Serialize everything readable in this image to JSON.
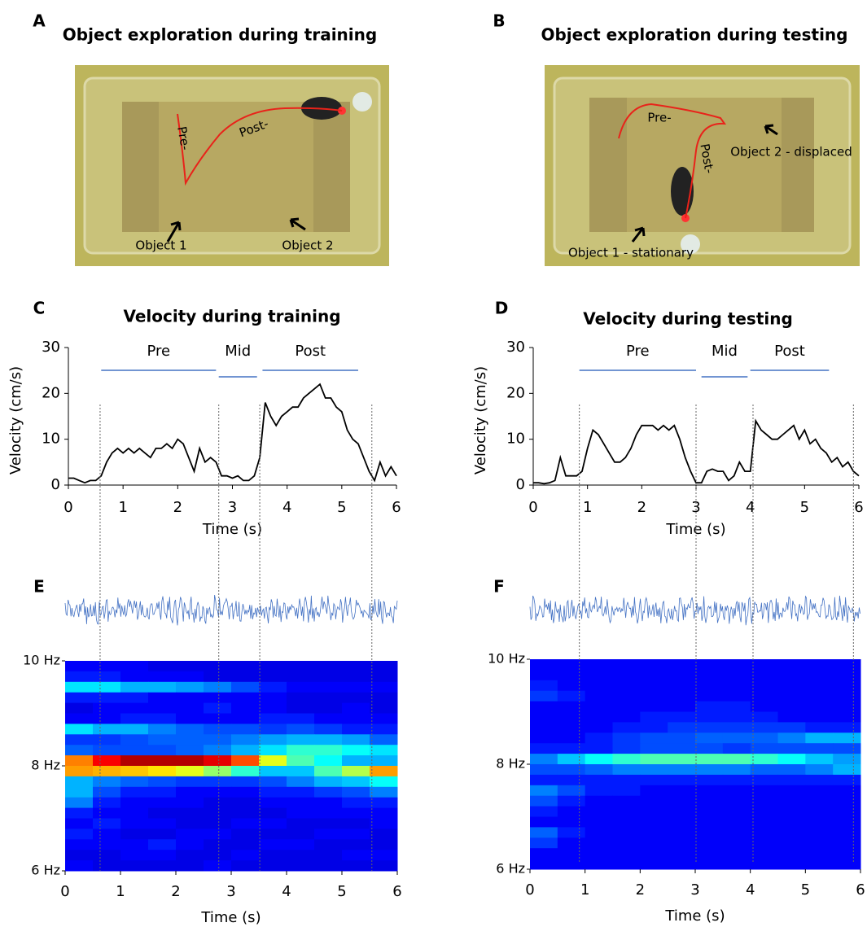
{
  "photos": [
    {
      "panel": "A",
      "title": "Object exploration during training",
      "labels": [
        "Pre-",
        "Post-",
        "Object 1",
        "Object 2"
      ]
    },
    {
      "panel": "B",
      "title": "Object exploration during testing",
      "labels": [
        "Pre-",
        "Post-",
        "Object 2 - displaced",
        "Object 1 - stationary"
      ]
    }
  ],
  "chart_data": [
    {
      "type": "line",
      "panel": "C",
      "title": "Velocity during training",
      "xlabel": "Time (s)",
      "ylabel": "Velocity (cm/s)",
      "color": "#000000",
      "phase_color": "#4472c4",
      "xlim": [
        0,
        6
      ],
      "ylim": [
        0,
        30
      ],
      "xticks": [
        0,
        1,
        2,
        3,
        4,
        5,
        6
      ],
      "yticks": [
        0,
        10,
        20,
        30
      ],
      "x": [
        0,
        0.1,
        0.2,
        0.3,
        0.4,
        0.5,
        0.6,
        0.7,
        0.8,
        0.9,
        1,
        1.1,
        1.2,
        1.3,
        1.4,
        1.5,
        1.6,
        1.7,
        1.8,
        1.9,
        2,
        2.1,
        2.2,
        2.3,
        2.4,
        2.5,
        2.6,
        2.7,
        2.8,
        2.9,
        3,
        3.1,
        3.2,
        3.3,
        3.4,
        3.5,
        3.6,
        3.7,
        3.8,
        3.9,
        4,
        4.1,
        4.2,
        4.3,
        4.4,
        4.5,
        4.6,
        4.7,
        4.8,
        4.9,
        5,
        5.1,
        5.2,
        5.3,
        5.4,
        5.5,
        5.6,
        5.7,
        5.8,
        5.9,
        6
      ],
      "values": [
        1.5,
        1.5,
        1,
        0.5,
        1,
        1,
        2,
        5,
        7,
        8,
        7,
        8,
        7,
        8,
        7,
        6,
        8,
        8,
        9,
        8,
        10,
        9,
        6,
        3,
        8,
        5,
        6,
        5,
        2,
        2,
        1.5,
        2,
        1,
        1,
        2,
        6,
        18,
        15,
        13,
        15,
        16,
        17,
        17,
        19,
        20,
        21,
        22,
        19,
        19,
        17,
        16,
        12,
        10,
        9,
        6,
        3,
        1,
        5,
        2,
        4,
        2
      ],
      "phases": [
        {
          "label": "Pre",
          "start": 0.6,
          "end": 2.7
        },
        {
          "label": "Mid",
          "start": 2.75,
          "end": 3.45
        },
        {
          "label": "Post",
          "start": 3.55,
          "end": 5.3
        }
      ],
      "markers": [
        0.58,
        2.75,
        3.5,
        5.55
      ]
    },
    {
      "type": "line",
      "panel": "D",
      "title": "Velocity during testing",
      "xlabel": "Time (s)",
      "ylabel": "Velocity (cm/s)",
      "color": "#000000",
      "phase_color": "#4472c4",
      "xlim": [
        0,
        6
      ],
      "ylim": [
        0,
        30
      ],
      "xticks": [
        0,
        1,
        2,
        3,
        4,
        5,
        6
      ],
      "yticks": [
        0,
        10,
        20,
        30
      ],
      "x": [
        0,
        0.1,
        0.2,
        0.3,
        0.4,
        0.5,
        0.6,
        0.7,
        0.8,
        0.9,
        1,
        1.1,
        1.2,
        1.3,
        1.4,
        1.5,
        1.6,
        1.7,
        1.8,
        1.9,
        2,
        2.1,
        2.2,
        2.3,
        2.4,
        2.5,
        2.6,
        2.7,
        2.8,
        2.9,
        3,
        3.1,
        3.2,
        3.3,
        3.4,
        3.5,
        3.6,
        3.7,
        3.8,
        3.9,
        4,
        4.1,
        4.2,
        4.3,
        4.4,
        4.5,
        4.6,
        4.7,
        4.8,
        4.9,
        5,
        5.1,
        5.2,
        5.3,
        5.4,
        5.5,
        5.6,
        5.7,
        5.8,
        5.9,
        6
      ],
      "values": [
        0.5,
        0.5,
        0.3,
        0.5,
        1,
        6,
        2,
        2,
        2,
        3,
        8,
        12,
        11,
        9,
        7,
        5,
        5,
        6,
        8,
        11,
        13,
        13,
        13,
        12,
        13,
        12,
        13,
        10,
        6,
        3,
        0.5,
        0.5,
        3,
        3.5,
        3,
        3,
        1,
        2,
        5,
        3,
        3,
        14,
        12,
        11,
        10,
        10,
        11,
        12,
        13,
        10,
        12,
        9,
        10,
        8,
        7,
        5,
        6,
        4,
        5,
        3,
        2
      ],
      "phases": [
        {
          "label": "Pre",
          "start": 0.85,
          "end": 3.0
        },
        {
          "label": "Mid",
          "start": 3.1,
          "end": 3.95
        },
        {
          "label": "Post",
          "start": 4.0,
          "end": 5.45
        }
      ],
      "markers": [
        0.85,
        3.0,
        4.05,
        5.9
      ]
    },
    {
      "type": "heatmap",
      "panel": "E",
      "xlabel": "Time (s)",
      "xlim": [
        0,
        6
      ],
      "xticks": [
        0,
        1,
        2,
        3,
        4,
        5,
        6
      ],
      "ylim": [
        6,
        10
      ],
      "zlim": [
        0,
        1
      ],
      "yticks": [
        {
          "value": 6,
          "label": "6 Hz"
        },
        {
          "value": 8,
          "label": "8 Hz"
        },
        {
          "value": 10,
          "label": "10 Hz"
        }
      ],
      "z": [
        [
          0.12,
          0.12,
          0.12,
          0.1,
          0.1,
          0.1,
          0.1,
          0.1,
          0.1,
          0.1,
          0.1,
          0.1
        ],
        [
          0.15,
          0.15,
          0.12,
          0.12,
          0.12,
          0.1,
          0.1,
          0.1,
          0.1,
          0.1,
          0.1,
          0.1
        ],
        [
          0.35,
          0.35,
          0.3,
          0.3,
          0.28,
          0.25,
          0.2,
          0.15,
          0.12,
          0.12,
          0.12,
          0.12
        ],
        [
          0.15,
          0.15,
          0.15,
          0.12,
          0.12,
          0.12,
          0.12,
          0.12,
          0.1,
          0.1,
          0.1,
          0.1
        ],
        [
          0.1,
          0.12,
          0.12,
          0.12,
          0.12,
          0.15,
          0.12,
          0.12,
          0.1,
          0.1,
          0.12,
          0.1
        ],
        [
          0.12,
          0.12,
          0.15,
          0.15,
          0.12,
          0.12,
          0.12,
          0.15,
          0.15,
          0.12,
          0.12,
          0.12
        ],
        [
          0.35,
          0.3,
          0.3,
          0.25,
          0.22,
          0.2,
          0.2,
          0.18,
          0.2,
          0.18,
          0.15,
          0.15
        ],
        [
          0.18,
          0.18,
          0.2,
          0.22,
          0.22,
          0.22,
          0.25,
          0.28,
          0.3,
          0.3,
          0.28,
          0.22
        ],
        [
          0.22,
          0.2,
          0.2,
          0.2,
          0.22,
          0.25,
          0.3,
          0.35,
          0.42,
          0.42,
          0.38,
          0.35
        ],
        [
          0.75,
          0.88,
          0.95,
          0.95,
          0.95,
          0.9,
          0.8,
          0.6,
          0.45,
          0.38,
          0.3,
          0.3
        ],
        [
          0.72,
          0.7,
          0.68,
          0.65,
          0.6,
          0.52,
          0.42,
          0.32,
          0.32,
          0.45,
          0.55,
          0.72
        ],
        [
          0.3,
          0.25,
          0.22,
          0.2,
          0.18,
          0.18,
          0.18,
          0.2,
          0.25,
          0.3,
          0.32,
          0.38
        ],
        [
          0.3,
          0.2,
          0.15,
          0.15,
          0.12,
          0.12,
          0.12,
          0.15,
          0.15,
          0.18,
          0.2,
          0.25
        ],
        [
          0.25,
          0.15,
          0.12,
          0.12,
          0.12,
          0.1,
          0.1,
          0.12,
          0.12,
          0.12,
          0.15,
          0.15
        ],
        [
          0.15,
          0.12,
          0.12,
          0.1,
          0.1,
          0.1,
          0.1,
          0.1,
          0.12,
          0.12,
          0.12,
          0.12
        ],
        [
          0.12,
          0.15,
          0.12,
          0.12,
          0.1,
          0.1,
          0.12,
          0.12,
          0.1,
          0.1,
          0.1,
          0.12
        ],
        [
          0.15,
          0.12,
          0.1,
          0.1,
          0.12,
          0.12,
          0.1,
          0.1,
          0.1,
          0.12,
          0.12,
          0.1
        ],
        [
          0.12,
          0.12,
          0.12,
          0.15,
          0.12,
          0.1,
          0.1,
          0.12,
          0.12,
          0.1,
          0.1,
          0.1
        ],
        [
          0.1,
          0.1,
          0.12,
          0.12,
          0.1,
          0.1,
          0.12,
          0.1,
          0.1,
          0.1,
          0.12,
          0.12
        ],
        [
          0.12,
          0.1,
          0.1,
          0.1,
          0.1,
          0.12,
          0.1,
          0.1,
          0.1,
          0.1,
          0.1,
          0.1
        ]
      ]
    },
    {
      "type": "heatmap",
      "panel": "F",
      "xlabel": "Time (s)",
      "xlim": [
        0,
        6
      ],
      "xticks": [
        0,
        1,
        2,
        3,
        4,
        5,
        6
      ],
      "ylim": [
        6,
        10
      ],
      "zlim": [
        0,
        1
      ],
      "yticks": [
        {
          "value": 6,
          "label": "6 Hz"
        },
        {
          "value": 8,
          "label": "8 Hz"
        },
        {
          "value": 10,
          "label": "10 Hz"
        }
      ],
      "z": [
        [
          0.12,
          0.12,
          0.12,
          0.12,
          0.12,
          0.12,
          0.12,
          0.12,
          0.12,
          0.12,
          0.12,
          0.12
        ],
        [
          0.12,
          0.12,
          0.12,
          0.12,
          0.12,
          0.12,
          0.12,
          0.12,
          0.12,
          0.12,
          0.12,
          0.12
        ],
        [
          0.15,
          0.12,
          0.12,
          0.12,
          0.12,
          0.12,
          0.12,
          0.12,
          0.12,
          0.12,
          0.12,
          0.12
        ],
        [
          0.18,
          0.15,
          0.12,
          0.12,
          0.12,
          0.12,
          0.12,
          0.12,
          0.12,
          0.12,
          0.12,
          0.12
        ],
        [
          0.12,
          0.12,
          0.12,
          0.12,
          0.12,
          0.12,
          0.15,
          0.15,
          0.12,
          0.12,
          0.12,
          0.12
        ],
        [
          0.12,
          0.12,
          0.12,
          0.12,
          0.15,
          0.15,
          0.15,
          0.15,
          0.15,
          0.12,
          0.12,
          0.12
        ],
        [
          0.12,
          0.12,
          0.12,
          0.15,
          0.15,
          0.18,
          0.18,
          0.18,
          0.18,
          0.18,
          0.15,
          0.15
        ],
        [
          0.12,
          0.12,
          0.15,
          0.18,
          0.2,
          0.2,
          0.22,
          0.22,
          0.22,
          0.25,
          0.3,
          0.3
        ],
        [
          0.15,
          0.15,
          0.15,
          0.18,
          0.2,
          0.2,
          0.2,
          0.18,
          0.2,
          0.2,
          0.2,
          0.2
        ],
        [
          0.25,
          0.32,
          0.38,
          0.42,
          0.45,
          0.45,
          0.45,
          0.45,
          0.42,
          0.38,
          0.32,
          0.28
        ],
        [
          0.2,
          0.2,
          0.22,
          0.25,
          0.25,
          0.25,
          0.25,
          0.25,
          0.22,
          0.22,
          0.25,
          0.3
        ],
        [
          0.15,
          0.15,
          0.15,
          0.15,
          0.15,
          0.15,
          0.15,
          0.15,
          0.15,
          0.15,
          0.15,
          0.15
        ],
        [
          0.25,
          0.2,
          0.15,
          0.15,
          0.12,
          0.12,
          0.12,
          0.12,
          0.12,
          0.12,
          0.12,
          0.12
        ],
        [
          0.2,
          0.15,
          0.12,
          0.12,
          0.12,
          0.12,
          0.12,
          0.12,
          0.12,
          0.12,
          0.12,
          0.12
        ],
        [
          0.15,
          0.12,
          0.12,
          0.12,
          0.12,
          0.12,
          0.12,
          0.12,
          0.12,
          0.12,
          0.12,
          0.12
        ],
        [
          0.12,
          0.12,
          0.12,
          0.12,
          0.12,
          0.12,
          0.12,
          0.12,
          0.12,
          0.12,
          0.12,
          0.12
        ],
        [
          0.22,
          0.15,
          0.12,
          0.12,
          0.12,
          0.12,
          0.12,
          0.12,
          0.12,
          0.12,
          0.12,
          0.12
        ],
        [
          0.18,
          0.12,
          0.12,
          0.12,
          0.12,
          0.12,
          0.12,
          0.12,
          0.12,
          0.12,
          0.12,
          0.12
        ],
        [
          0.12,
          0.12,
          0.12,
          0.12,
          0.12,
          0.12,
          0.12,
          0.12,
          0.12,
          0.12,
          0.12,
          0.12
        ],
        [
          0.12,
          0.12,
          0.12,
          0.12,
          0.12,
          0.12,
          0.12,
          0.12,
          0.12,
          0.12,
          0.12,
          0.12
        ]
      ]
    }
  ]
}
